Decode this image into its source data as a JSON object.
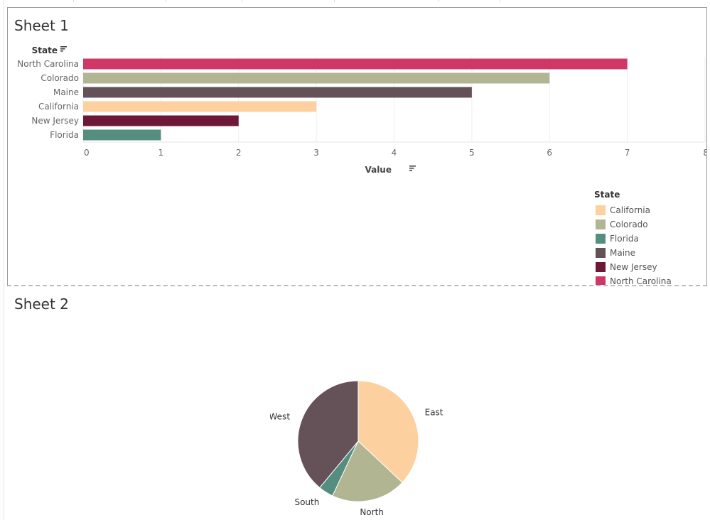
{
  "sheet1": {
    "title": "Sheet 1",
    "state_header": "State",
    "legend_title": "State",
    "legend": [
      {
        "label": "California",
        "color": "#fcd09f"
      },
      {
        "label": "Colorado",
        "color": "#b1b592"
      },
      {
        "label": "Florida",
        "color": "#558d7f"
      },
      {
        "label": "Maine",
        "color": "#655259"
      },
      {
        "label": "New Jersey",
        "color": "#6e1838"
      },
      {
        "label": "North Carolina",
        "color": "#cf3766"
      }
    ]
  },
  "sheet2": {
    "title": "Sheet 2"
  },
  "chart_data": [
    {
      "type": "bar",
      "orientation": "horizontal",
      "title": "Sheet 1",
      "categories": [
        "North Carolina",
        "Colorado",
        "Maine",
        "California",
        "New Jersey",
        "Florida"
      ],
      "values": [
        7,
        6,
        5,
        3,
        2,
        1
      ],
      "colors": [
        "#cf3766",
        "#b1b592",
        "#655259",
        "#fcd09f",
        "#6e1838",
        "#558d7f"
      ],
      "xlabel": "Value",
      "ylabel": "State",
      "xlim": [
        0,
        8
      ],
      "xticks": [
        "0",
        "1",
        "2",
        "3",
        "4",
        "5",
        "6",
        "7",
        "8"
      ],
      "grid": true,
      "legend": "right"
    },
    {
      "type": "pie",
      "title": "Sheet 2",
      "categories": [
        "East",
        "North",
        "South",
        "West"
      ],
      "values": [
        37,
        20,
        4,
        39
      ],
      "colors": [
        "#fcd09f",
        "#b1b592",
        "#558d7f",
        "#655259"
      ]
    }
  ]
}
